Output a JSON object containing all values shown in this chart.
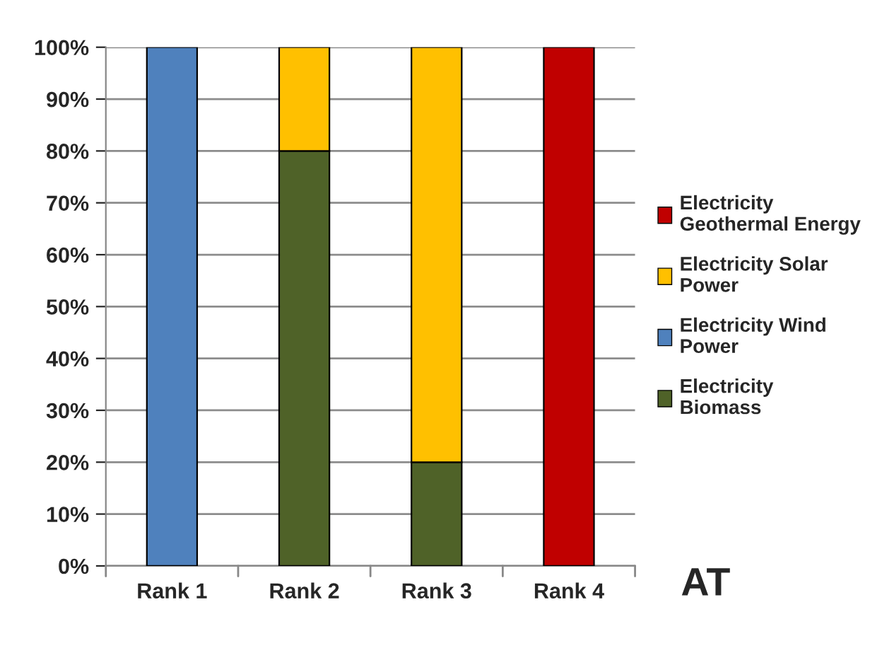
{
  "chart_data": {
    "type": "bar",
    "stacked": true,
    "categories": [
      "Rank 1",
      "Rank 2",
      "Rank 3",
      "Rank 4"
    ],
    "series": [
      {
        "name": "Electricity Biomass",
        "color": "#4f6228",
        "values": [
          null,
          80,
          20,
          null
        ]
      },
      {
        "name": "Electricity Wind Power",
        "color": "#4f81bd",
        "values": [
          100,
          null,
          null,
          null
        ]
      },
      {
        "name": "Electricity Solar Power",
        "color": "#ffc000",
        "values": [
          null,
          20,
          80,
          null
        ]
      },
      {
        "name": "Electricity Geothermal Energy",
        "color": "#c00000",
        "values": [
          null,
          null,
          null,
          100
        ]
      }
    ],
    "ylim": [
      0,
      100
    ],
    "yticks": [
      {
        "value": 0,
        "label": "0%"
      },
      {
        "value": 10,
        "label": "10%"
      },
      {
        "value": 20,
        "label": "20%"
      },
      {
        "value": 30,
        "label": "30%"
      },
      {
        "value": 40,
        "label": "40%"
      },
      {
        "value": 50,
        "label": "50%"
      },
      {
        "value": 60,
        "label": "60%"
      },
      {
        "value": 70,
        "label": "70%"
      },
      {
        "value": 80,
        "label": "80%"
      },
      {
        "value": 90,
        "label": "90%"
      },
      {
        "value": 100,
        "label": "100%"
      }
    ],
    "grid": "y",
    "legend": "right",
    "annotations": [
      "AT"
    ]
  }
}
